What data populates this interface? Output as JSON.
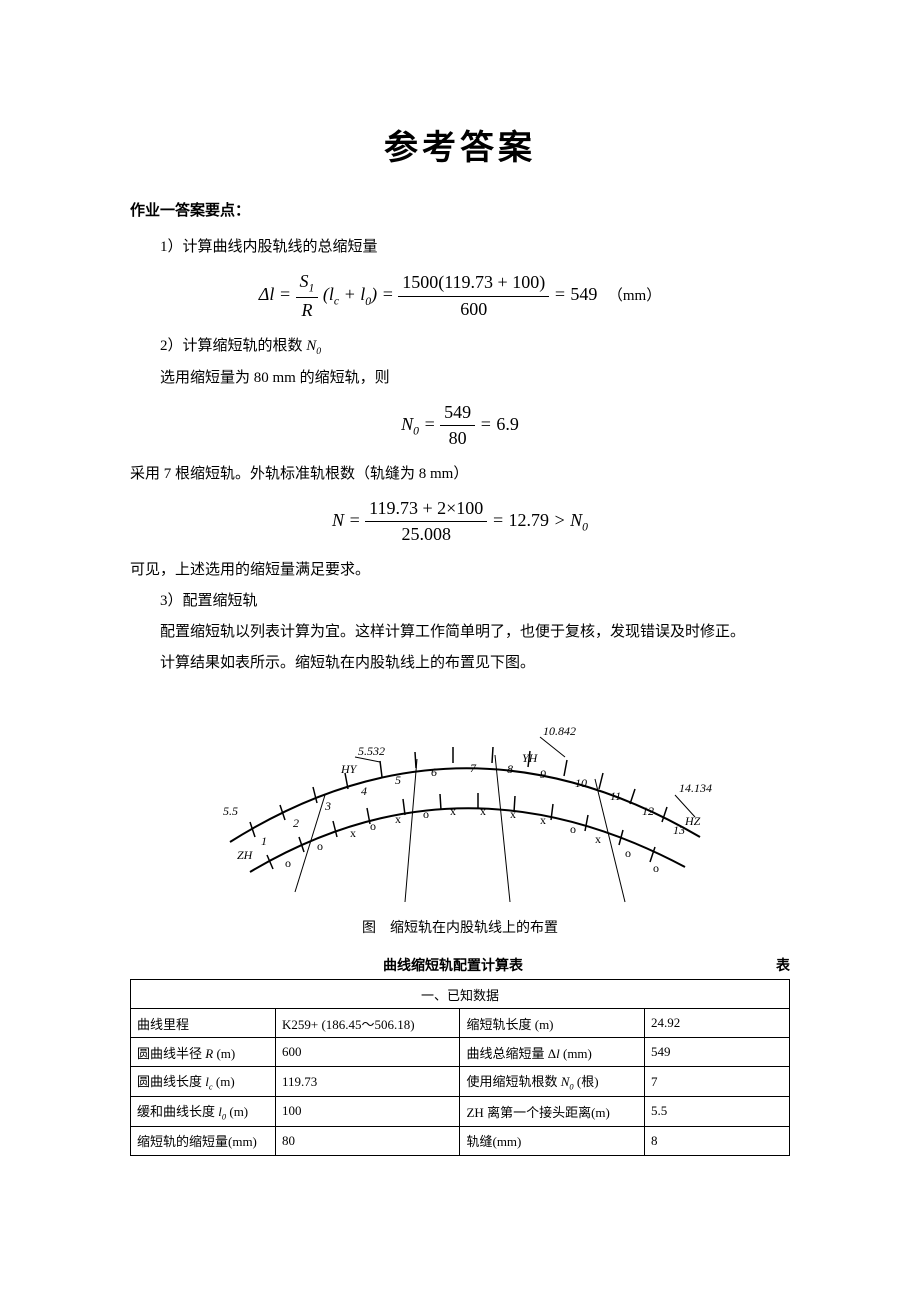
{
  "title": "参考答案",
  "section_header": "作业一答案要点：",
  "step1": {
    "heading": "1）计算曲线内股轨线的总缩短量",
    "formula_html": "Δ<span class='it'>l</span> = <span class='frac'><span class='num'><span class='it'>S</span><span class='subtxt'>1</span></span><span class='den'><span class='it'>R</span></span></span> (<span class='it'>l<span class='subtxt'>c</span></span> + <span class='it'>l</span><span class='subtxt'>0</span>) = <span class='frac'><span class='num up'>1500(119.73 + 100)</span><span class='den up'>600</span></span> = <span class='up'>549</span>　<span class='cn-unit'>（mm）</span>"
  },
  "step2": {
    "heading_html": "2）计算缩短轨的根数 <span class='it'>N</span><span class='subtxt'>0</span>",
    "line1": "选用缩短量为 80 mm  的缩短轨，则",
    "formula1_html": "<span class='it'>N</span><span class='subtxt'>0</span> = <span class='frac'><span class='num up'>549</span><span class='den up'>80</span></span> = <span class='up'>6.9</span>",
    "line2": "采用 7 根缩短轨。外轨标准轨根数（轨缝为 8 mm）",
    "formula2_html": "<span class='it'>N</span> = <span class='frac'><span class='num up'>119.73 + 2×100</span><span class='den up'>25.008</span></span> = <span class='up'>12.79</span> &gt; <span class='it'>N</span><span class='subtxt'>0</span>",
    "line3": "可见，上述选用的缩短量满足要求。"
  },
  "step3": {
    "heading": "3）配置缩短轨",
    "line1": "配置缩短轨以列表计算为宜。这样计算工作简单明了，也便于复核，发现错误及时修正。",
    "line2": "计算结果如表所示。缩短轨在内股轨线上的布置见下图。"
  },
  "figure": {
    "caption": "图　缩短轨在内股轨线上的布置",
    "labels": {
      "l_5_532": "5.532",
      "l_10_842": "10.842",
      "l_14_134": "14.134",
      "l_5_5": "5.5",
      "ZH": "ZH",
      "HY": "HY",
      "YH": "YH",
      "HZ": "HZ",
      "n1": "1",
      "n2": "2",
      "n3": "3",
      "n4": "4",
      "n5": "5",
      "n6": "6",
      "n7": "7",
      "n8": "8",
      "n9": "9",
      "n10": "10",
      "n11": "11",
      "n12": "12",
      "n13": "13"
    }
  },
  "table": {
    "title": "曲线缩短轨配置计算表",
    "right_label": "表",
    "section_row": "一、已知数据",
    "rows": [
      {
        "l": "曲线里程",
        "lv": "K259+ (186.45～506.18)",
        "r": "缩短轨长度  (m)",
        "rv": "24.92"
      },
      {
        "l_html": "圆曲线半径 <span class='it'>R</span> (m)",
        "lv": "600",
        "r_html": "曲线总缩短量 Δ<span class='it'>l</span> (mm)",
        "rv": "549"
      },
      {
        "l_html": "圆曲线长度 <span class='it'>l<span class='subtxt'>c</span></span> (m)",
        "lv": "119.73",
        "r_html": "使用缩短轨根数 <span class='it'>N</span><span class='subtxt'>0</span> (根)",
        "rv": "7"
      },
      {
        "l_html": "缓和曲线长度 <span class='it'>l</span><span class='subtxt'>0</span> (m)",
        "lv": "100",
        "r": "ZH 离第一个接头距离(m)",
        "rv": "5.5"
      },
      {
        "l": "缩短轨的缩短量(mm)",
        "lv": "80",
        "r": "轨缝(mm)",
        "rv": "8"
      }
    ]
  }
}
